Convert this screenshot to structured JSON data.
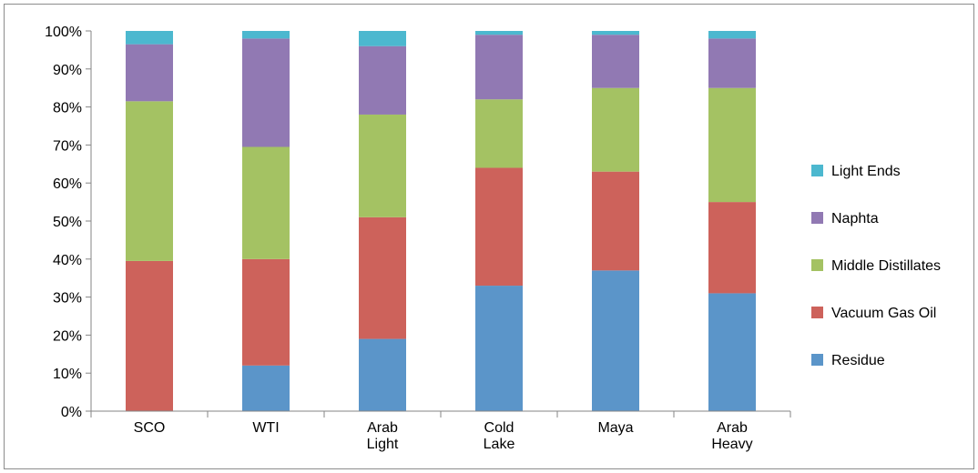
{
  "chart_data": {
    "type": "bar",
    "stacked": true,
    "categories": [
      "SCO",
      "WTI",
      "Arab Light",
      "Cold Lake",
      "Maya",
      "Arab Heavy"
    ],
    "category_lines": [
      [
        "SCO"
      ],
      [
        "WTI"
      ],
      [
        "Arab",
        "Light"
      ],
      [
        "Cold",
        "Lake"
      ],
      [
        "Maya"
      ],
      [
        "Arab",
        "Heavy"
      ]
    ],
    "series": [
      {
        "name": "Residue",
        "color": "#5b95c9",
        "values": [
          0,
          12,
          19,
          33,
          37,
          31
        ]
      },
      {
        "name": "Vacuum Gas Oil",
        "color": "#cd625b",
        "values": [
          39.5,
          28,
          32,
          31,
          26,
          24
        ]
      },
      {
        "name": "Middle Distillates",
        "color": "#a4c263",
        "values": [
          42,
          29.5,
          27,
          18,
          22,
          30
        ]
      },
      {
        "name": "Naphta",
        "color": "#9179b3",
        "values": [
          15,
          28.5,
          18,
          17,
          14,
          13
        ]
      },
      {
        "name": "Light Ends",
        "color": "#4cb8cf",
        "values": [
          3.5,
          2,
          4,
          1,
          1,
          2
        ]
      }
    ],
    "ylim": [
      0,
      100
    ],
    "yticks": [
      "0%",
      "10%",
      "20%",
      "30%",
      "40%",
      "50%",
      "60%",
      "70%",
      "80%",
      "90%",
      "100%"
    ],
    "grid": false,
    "legend_position": "right",
    "legend_order": [
      "Light Ends",
      "Naphta",
      "Middle Distillates",
      "Vacuum Gas Oil",
      "Residue"
    ]
  }
}
